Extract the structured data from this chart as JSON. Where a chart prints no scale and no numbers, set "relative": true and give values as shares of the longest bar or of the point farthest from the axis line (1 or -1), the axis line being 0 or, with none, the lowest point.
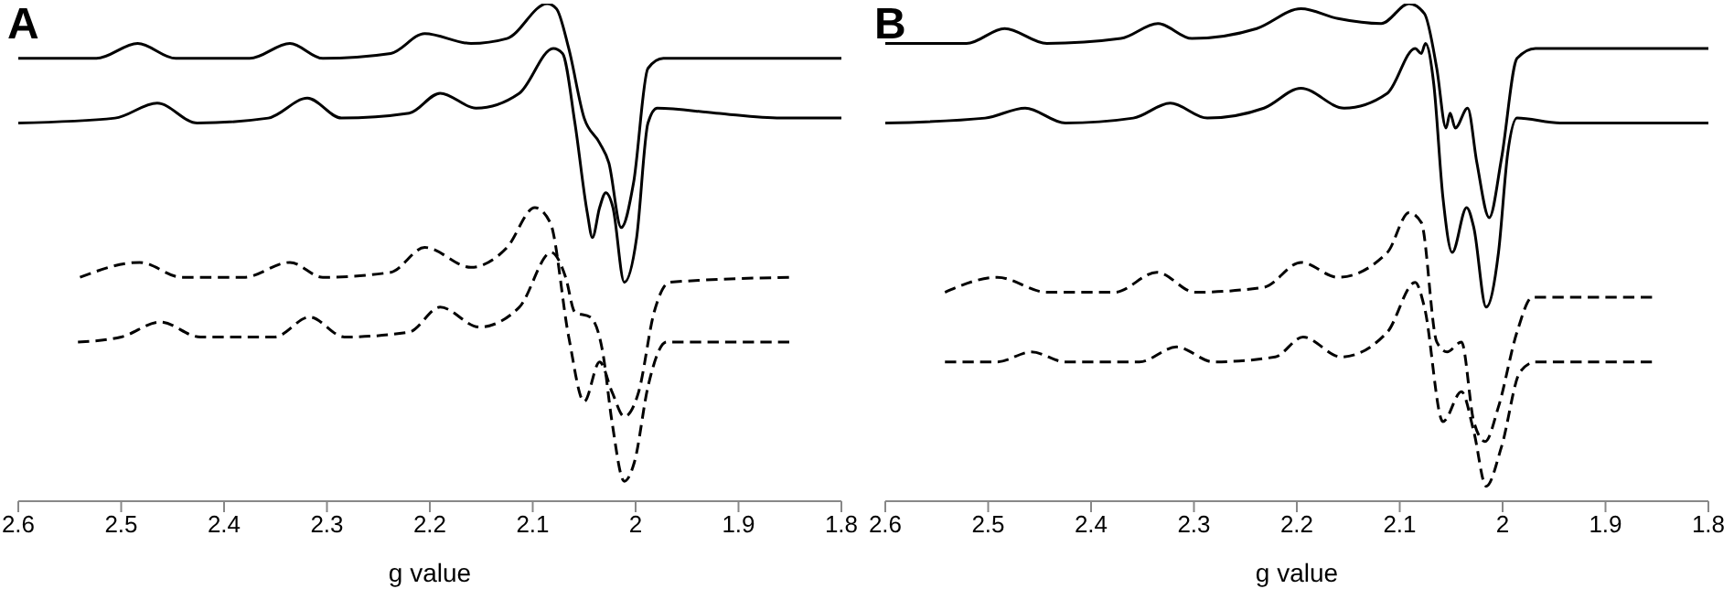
{
  "chart_data": [
    {
      "type": "line",
      "title": "A",
      "xlabel": "g value",
      "relative": true,
      "xlim": [
        2.6,
        1.8
      ],
      "xticks": [
        2.6,
        2.5,
        2.4,
        2.3,
        2.2,
        2.1,
        2,
        1.9,
        1.8
      ],
      "legend": false,
      "grid": false,
      "series": [
        {
          "color": "#000000",
          "line_style": "solid",
          "x": [
            2.6,
            2.524,
            2.484,
            2.447,
            2.375,
            2.336,
            2.304,
            2.238,
            2.205,
            2.16,
            2.125,
            2.086,
            2.077,
            2.065,
            2.05,
            2.035,
            2.026,
            2.014,
            2.002,
            1.988,
            1.973,
            1.8
          ],
          "values": [
            0.89,
            0.89,
            0.92,
            0.89,
            0.89,
            0.92,
            0.89,
            0.9,
            0.94,
            0.92,
            0.93,
            1,
            0.99,
            0.91,
            0.77,
            0.72,
            0.68,
            0.55,
            0.64,
            0.87,
            0.89,
            0.89
          ]
        },
        {
          "color": "#000000",
          "line_style": "solid",
          "x": [
            2.6,
            2.506,
            2.465,
            2.426,
            2.357,
            2.319,
            2.286,
            2.22,
            2.19,
            2.155,
            2.113,
            2.08,
            2.071,
            2.059,
            2.047,
            2.042,
            2.035,
            2.029,
            2.022,
            2.011,
            1.999,
            1.988,
            1.979,
            1.922,
            1.859,
            1.8
          ],
          "values": [
            0.76,
            0.77,
            0.8,
            0.76,
            0.77,
            0.81,
            0.77,
            0.78,
            0.82,
            0.79,
            0.82,
            0.91,
            0.9,
            0.76,
            0.58,
            0.53,
            0.59,
            0.62,
            0.59,
            0.44,
            0.53,
            0.76,
            0.79,
            0.78,
            0.77,
            0.77
          ]
        },
        {
          "color": "#000000",
          "line_style": "dashed",
          "x": [
            2.54,
            2.482,
            2.441,
            2.381,
            2.336,
            2.304,
            2.238,
            2.205,
            2.16,
            2.125,
            2.098,
            2.083,
            2.065,
            2.05,
            2.035,
            2.023,
            2.011,
            1.997,
            1.982,
            1.967,
            1.85
          ],
          "values": [
            0.45,
            0.48,
            0.45,
            0.45,
            0.48,
            0.45,
            0.46,
            0.51,
            0.47,
            0.51,
            0.59,
            0.56,
            0.33,
            0.2,
            0.28,
            0.22,
            0.17,
            0.22,
            0.38,
            0.44,
            0.45
          ]
        },
        {
          "color": "#000000",
          "line_style": "dashed",
          "x": [
            2.542,
            2.5,
            2.462,
            2.423,
            2.351,
            2.317,
            2.283,
            2.22,
            2.19,
            2.152,
            2.113,
            2.082,
            2.068,
            2.059,
            2.044,
            2.032,
            2.023,
            2.011,
            2.001,
            1.988,
            1.97,
            1.85
          ],
          "values": [
            0.32,
            0.33,
            0.36,
            0.33,
            0.33,
            0.37,
            0.33,
            0.34,
            0.39,
            0.35,
            0.39,
            0.5,
            0.45,
            0.38,
            0.37,
            0.3,
            0.16,
            0.04,
            0.08,
            0.23,
            0.32,
            0.32
          ]
        }
      ]
    },
    {
      "type": "line",
      "title": "B",
      "xlabel": "g value",
      "relative": true,
      "xlim": [
        2.6,
        1.8
      ],
      "xticks": [
        2.6,
        2.5,
        2.4,
        2.3,
        2.2,
        2.1,
        2,
        1.9,
        1.8
      ],
      "legend": false,
      "grid": false,
      "series": [
        {
          "color": "#000000",
          "line_style": "solid",
          "x": [
            2.6,
            2.521,
            2.484,
            2.443,
            2.371,
            2.335,
            2.302,
            2.239,
            2.196,
            2.16,
            2.118,
            2.091,
            2.076,
            2.064,
            2.055,
            2.051,
            2.046,
            2.034,
            2.025,
            2.013,
            2.001,
            1.986,
            1.968,
            1.8
          ],
          "values": [
            0.92,
            0.92,
            0.95,
            0.92,
            0.93,
            0.96,
            0.93,
            0.95,
            0.99,
            0.97,
            0.96,
            1,
            0.98,
            0.87,
            0.75,
            0.78,
            0.75,
            0.79,
            0.68,
            0.57,
            0.69,
            0.89,
            0.91,
            0.91
          ]
        },
        {
          "color": "#000000",
          "line_style": "solid",
          "x": [
            2.6,
            2.503,
            2.464,
            2.425,
            2.359,
            2.323,
            2.287,
            2.232,
            2.196,
            2.154,
            2.112,
            2.085,
            2.079,
            2.075,
            2.067,
            2.058,
            2.049,
            2.035,
            2.028,
            2.016,
            2.004,
            1.995,
            1.986,
            1.944,
            1.92,
            1.8
          ],
          "values": [
            0.76,
            0.77,
            0.79,
            0.76,
            0.77,
            0.8,
            0.77,
            0.79,
            0.83,
            0.79,
            0.82,
            0.91,
            0.9,
            0.92,
            0.84,
            0.61,
            0.5,
            0.59,
            0.55,
            0.39,
            0.5,
            0.7,
            0.77,
            0.76,
            0.76,
            0.76
          ]
        },
        {
          "color": "#000000",
          "line_style": "dashed",
          "x": [
            2.542,
            2.491,
            2.443,
            2.377,
            2.336,
            2.299,
            2.232,
            2.196,
            2.16,
            2.112,
            2.091,
            2.079,
            2.064,
            2.054,
            2.04,
            2.028,
            2.017,
            2.004,
            1.986,
            1.971,
            1.854
          ],
          "values": [
            0.42,
            0.45,
            0.42,
            0.42,
            0.46,
            0.42,
            0.43,
            0.48,
            0.45,
            0.5,
            0.58,
            0.56,
            0.32,
            0.3,
            0.32,
            0.16,
            0.12,
            0.19,
            0.34,
            0.41,
            0.41
          ]
        },
        {
          "color": "#000000",
          "line_style": "dashed",
          "x": [
            2.542,
            2.491,
            2.458,
            2.425,
            2.353,
            2.317,
            2.281,
            2.221,
            2.194,
            2.157,
            2.112,
            2.085,
            2.076,
            2.058,
            2.04,
            2.028,
            2.016,
            2.001,
            1.983,
            1.968,
            1.854
          ],
          "values": [
            0.28,
            0.28,
            0.3,
            0.28,
            0.28,
            0.31,
            0.28,
            0.29,
            0.33,
            0.29,
            0.34,
            0.44,
            0.39,
            0.16,
            0.22,
            0.14,
            0.03,
            0.11,
            0.26,
            0.28,
            0.28
          ]
        }
      ]
    }
  ]
}
